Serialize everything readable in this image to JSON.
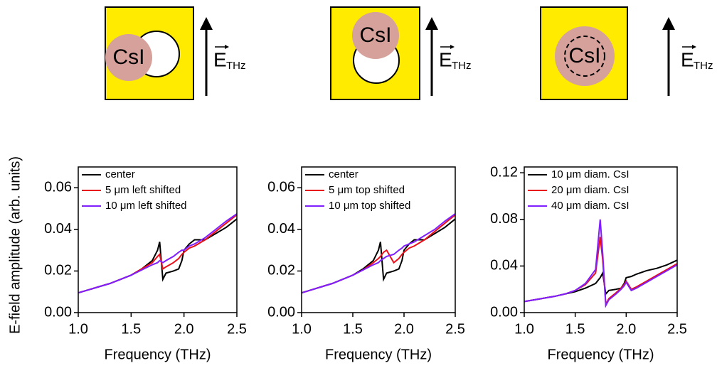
{
  "diagrams": [
    {
      "label": "CsI",
      "field": "E",
      "field_sub": "THz"
    },
    {
      "label": "CsI",
      "field": "E",
      "field_sub": "THz"
    },
    {
      "label": "CsI",
      "field": "E",
      "field_sub": "THz"
    }
  ],
  "chart_data": [
    {
      "type": "line",
      "ylabel": "E-field amplitude (arb. units)",
      "xlabel": "Frequency (THz)",
      "x": [
        1.0,
        1.1,
        1.2,
        1.3,
        1.4,
        1.5,
        1.6,
        1.7,
        1.75,
        1.77,
        1.8,
        1.83,
        1.9,
        1.95,
        1.98,
        2.0,
        2.05,
        2.1,
        2.2,
        2.3,
        2.4,
        2.5
      ],
      "xlim": [
        1.0,
        2.5
      ],
      "xticks": [
        {
          "value": 1,
          "label": "1.0"
        },
        1.5,
        {
          "value": 2,
          "label": "2.0"
        },
        2.5
      ],
      "ylim": [
        0,
        0.07
      ],
      "yticks": [
        {
          "value": 0,
          "label": "0.00"
        },
        0.02,
        0.04,
        0.06
      ],
      "series": [
        {
          "name": "center",
          "color": "#000000",
          "values": [
            0.0095,
            0.011,
            0.0125,
            0.014,
            0.016,
            0.018,
            0.021,
            0.025,
            0.03,
            0.034,
            0.016,
            0.019,
            0.02,
            0.021,
            0.025,
            0.03,
            0.033,
            0.035,
            0.035,
            0.038,
            0.041,
            0.045
          ]
        },
        {
          "name": "5 μm left shifted",
          "color": "#e8101a",
          "values": [
            0.0095,
            0.011,
            0.0125,
            0.014,
            0.016,
            0.018,
            0.021,
            0.024,
            0.027,
            0.028,
            0.021,
            0.022,
            0.024,
            0.026,
            0.028,
            0.029,
            0.031,
            0.032,
            0.035,
            0.039,
            0.043,
            0.047
          ]
        },
        {
          "name": "10 μm left shifted",
          "color": "#7f1fff",
          "values": [
            0.0095,
            0.011,
            0.0125,
            0.014,
            0.016,
            0.018,
            0.0205,
            0.023,
            0.024,
            0.025,
            0.024,
            0.025,
            0.027,
            0.029,
            0.03,
            0.03,
            0.032,
            0.033,
            0.036,
            0.04,
            0.044,
            0.0475
          ]
        }
      ]
    },
    {
      "type": "line",
      "xlabel": "Frequency (THz)",
      "x": [
        1.0,
        1.1,
        1.2,
        1.3,
        1.4,
        1.5,
        1.6,
        1.7,
        1.75,
        1.77,
        1.8,
        1.83,
        1.9,
        1.95,
        1.98,
        2.0,
        2.05,
        2.1,
        2.2,
        2.3,
        2.4,
        2.5
      ],
      "xlim": [
        1.0,
        2.5
      ],
      "xticks": [
        {
          "value": 1,
          "label": "1.0"
        },
        1.5,
        {
          "value": 2,
          "label": "2.0"
        },
        2.5
      ],
      "ylim": [
        0,
        0.07
      ],
      "yticks": [
        {
          "value": 0,
          "label": "0.00"
        },
        0.02,
        0.04,
        0.06
      ],
      "series": [
        {
          "name": "center",
          "color": "#000000",
          "values": [
            0.0095,
            0.011,
            0.0125,
            0.014,
            0.016,
            0.018,
            0.021,
            0.025,
            0.03,
            0.034,
            0.016,
            0.019,
            0.02,
            0.021,
            0.025,
            0.03,
            0.033,
            0.035,
            0.035,
            0.038,
            0.041,
            0.045
          ]
        },
        {
          "name": "5 μm top shifted",
          "color": "#e8101a",
          "values": [
            0.0095,
            0.011,
            0.0125,
            0.014,
            0.016,
            0.018,
            0.0205,
            0.024,
            0.026,
            0.027,
            0.029,
            0.03,
            0.024,
            0.026,
            0.028,
            0.029,
            0.031,
            0.032,
            0.035,
            0.039,
            0.043,
            0.047
          ]
        },
        {
          "name": "10 μm top shifted",
          "color": "#7f1fff",
          "values": [
            0.0095,
            0.011,
            0.0125,
            0.014,
            0.016,
            0.018,
            0.0205,
            0.023,
            0.024,
            0.025,
            0.026,
            0.027,
            0.028,
            0.03,
            0.031,
            0.032,
            0.033,
            0.034,
            0.037,
            0.04,
            0.044,
            0.0475
          ]
        }
      ]
    },
    {
      "type": "line",
      "xlabel": "Frequency (THz)",
      "x": [
        1.0,
        1.1,
        1.2,
        1.3,
        1.4,
        1.5,
        1.6,
        1.7,
        1.745,
        1.77,
        1.8,
        1.83,
        1.9,
        1.95,
        1.98,
        2.0,
        2.05,
        2.1,
        2.2,
        2.3,
        2.4,
        2.5
      ],
      "xlim": [
        1.0,
        2.5
      ],
      "xticks": [
        {
          "value": 1,
          "label": "1.0"
        },
        1.5,
        {
          "value": 2,
          "label": "2.0"
        },
        2.5
      ],
      "ylim": [
        0,
        0.125
      ],
      "yticks": [
        {
          "value": 0,
          "label": "0.00"
        },
        0.04,
        0.08,
        0.12
      ],
      "series": [
        {
          "name": "10 μm diam. CsI",
          "color": "#000000",
          "values": [
            0.0095,
            0.011,
            0.0125,
            0.014,
            0.016,
            0.018,
            0.021,
            0.025,
            0.03,
            0.034,
            0.016,
            0.019,
            0.02,
            0.021,
            0.025,
            0.03,
            0.031,
            0.033,
            0.036,
            0.038,
            0.041,
            0.045
          ]
        },
        {
          "name": "20 μm diam. CsI",
          "color": "#e8101a",
          "values": [
            0.0095,
            0.011,
            0.0125,
            0.014,
            0.016,
            0.019,
            0.024,
            0.034,
            0.065,
            0.045,
            0.007,
            0.012,
            0.017,
            0.021,
            0.024,
            0.027,
            0.02,
            0.022,
            0.027,
            0.032,
            0.037,
            0.042
          ]
        },
        {
          "name": "40 μm diam. CsI",
          "color": "#7f1fff",
          "values": [
            0.0095,
            0.011,
            0.0125,
            0.014,
            0.016,
            0.019,
            0.025,
            0.037,
            0.08,
            0.05,
            0.006,
            0.011,
            0.016,
            0.02,
            0.023,
            0.026,
            0.019,
            0.021,
            0.026,
            0.031,
            0.036,
            0.041
          ]
        }
      ]
    }
  ]
}
